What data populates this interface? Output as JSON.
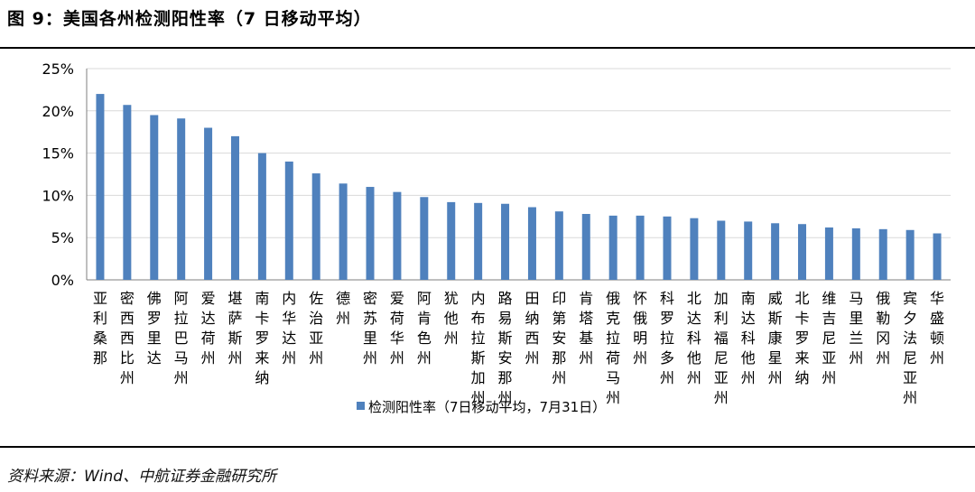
{
  "figure": {
    "title": "图 9：美国各州检测阳性率（7 日移动平均）",
    "source": "资料来源：Wind、中航证券金融研究所"
  },
  "chart_data": {
    "type": "bar",
    "categories": [
      "亚利桑那",
      "密西西比州",
      "佛罗里达",
      "阿拉巴马州",
      "爱达荷州",
      "堪萨斯州",
      "南卡罗来纳",
      "内华达州",
      "佐治亚州",
      "德州",
      "密苏里州",
      "爱荷华州",
      "阿肯色州",
      "犹他州",
      "内布拉斯加州",
      "路易斯安那州",
      "田纳西州",
      "印第安那州",
      "肯塔基州",
      "俄克拉荷马州",
      "怀俄明州",
      "科罗拉多州",
      "北达科他州",
      "加利福尼亚州",
      "南达科他州",
      "威斯康星州",
      "北卡罗来纳",
      "维吉尼亚州",
      "马里兰州",
      "俄勒冈州",
      "宾夕法尼亚州",
      "华盛顿州"
    ],
    "series": [
      {
        "name": "检测阳性率（7日移动平均，7月31日）",
        "values": [
          22.0,
          20.7,
          19.5,
          19.1,
          18.0,
          17.0,
          15.0,
          14.0,
          12.6,
          11.4,
          11.0,
          10.4,
          9.8,
          9.2,
          9.1,
          9.0,
          8.6,
          8.1,
          7.8,
          7.6,
          7.6,
          7.5,
          7.3,
          7.0,
          6.9,
          6.7,
          6.6,
          6.2,
          6.1,
          6.0,
          5.9,
          5.5
        ]
      }
    ],
    "yticks": [
      "0%",
      "5%",
      "10%",
      "15%",
      "20%",
      "25%"
    ],
    "ylim": [
      0,
      25
    ],
    "grid": true,
    "legend_position": "bottom",
    "bar_color": "#4f81bd"
  }
}
